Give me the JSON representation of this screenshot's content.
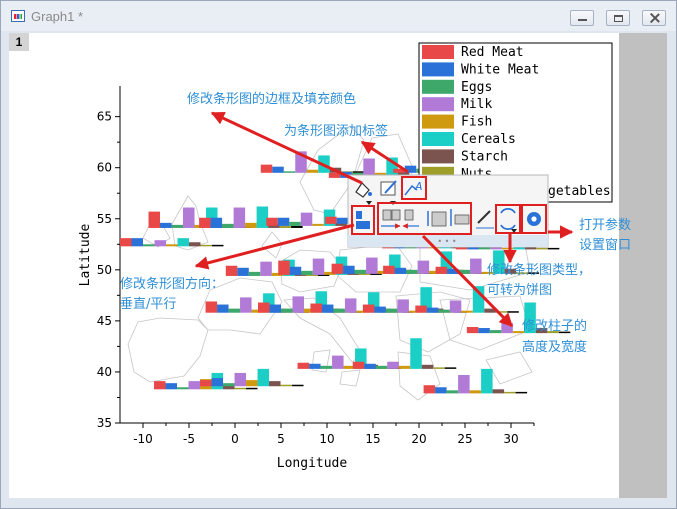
{
  "window": {
    "title": "Graph1 *",
    "layer_label": "1"
  },
  "colors": {
    "series": [
      "#e94848",
      "#2a72d8",
      "#3ea86a",
      "#b07ad6",
      "#d09a10",
      "#1ccfc6",
      "#7b5450",
      "#9e9e2a"
    ],
    "annotation": "#2f8fd6",
    "highlight": "#e02020"
  },
  "chart_data": {
    "type": "bar",
    "xlabel": "Longitude",
    "ylabel": "Latitude",
    "xlim": [
      -12.5,
      32.5
    ],
    "ylim": [
      35,
      68
    ],
    "xticks": [
      -10,
      -5,
      0,
      5,
      10,
      15,
      20,
      25,
      30
    ],
    "yticks": [
      35,
      40,
      45,
      50,
      55,
      60,
      65
    ],
    "legend": {
      "placement": "top-right",
      "entries": [
        "Red Meat",
        "White Meat",
        "Eggs",
        "Milk",
        "Fish",
        "Cereals",
        "Starch",
        "Nuts",
        "Fr&Veg"
      ],
      "visible_labels": [
        "Red Meat",
        "White Meat",
        "Eggs",
        "Milk",
        "Fish",
        "Cereals",
        "Starch",
        "Nuts",
        "getables"
      ]
    },
    "groups": [
      {
        "lon": -12.5,
        "lat": 52.3,
        "values": [
          0.8,
          0.8,
          0.2,
          0.6,
          0.2,
          0.8,
          0.4,
          0.1,
          0.1
        ]
      },
      {
        "lon": -9.4,
        "lat": 54.1,
        "values": [
          1.6,
          0.5,
          0.3,
          2.0,
          0.3,
          2.0,
          0.3,
          0.1,
          0.1
        ]
      },
      {
        "lon": -3.9,
        "lat": 54.1,
        "values": [
          1.0,
          1.0,
          0.4,
          2.0,
          0.5,
          2.1,
          0.4,
          0.2,
          0.2
        ]
      },
      {
        "lon": 2.8,
        "lat": 59.5,
        "values": [
          0.8,
          0.6,
          0.1,
          2.1,
          0.3,
          1.7,
          0.5,
          0.1,
          0.1
        ]
      },
      {
        "lon": 10.2,
        "lat": 59.0,
        "values": [
          0.5,
          0.6,
          0.5,
          1.9,
          0.5,
          2.0,
          0.6,
          0.1,
          0.1
        ]
      },
      {
        "lon": 17.2,
        "lat": 59.5,
        "values": [
          0.4,
          0.7,
          0.4,
          2.1,
          0.4,
          1.7,
          0.5,
          0.2,
          0.2
        ]
      },
      {
        "lon": 3.4,
        "lat": 54.3,
        "values": [
          0.8,
          0.8,
          0.4,
          1.3,
          0.2,
          1.6,
          0.3,
          0.1,
          0.1
        ]
      },
      {
        "lon": 9.8,
        "lat": 54.5,
        "values": [
          0.7,
          0.6,
          0.4,
          2.0,
          0.2,
          2.2,
          0.4,
          0.1,
          0.1
        ]
      },
      {
        "lon": 16.0,
        "lat": 52.1,
        "values": [
          0.7,
          0.6,
          0.4,
          1.9,
          0.2,
          1.8,
          0.5,
          0.1,
          0.1
        ]
      },
      {
        "lon": 24.0,
        "lat": 52.0,
        "values": [
          0.5,
          0.5,
          0.4,
          1.7,
          0.1,
          1.6,
          0.6,
          0.1,
          0.1
        ]
      },
      {
        "lon": -1.0,
        "lat": 49.4,
        "values": [
          1.0,
          0.8,
          0.4,
          1.4,
          0.3,
          1.6,
          0.4,
          0.1,
          0.1
        ]
      },
      {
        "lon": 4.7,
        "lat": 49.5,
        "values": [
          1.4,
          0.8,
          0.4,
          1.6,
          0.3,
          1.8,
          0.4,
          0.1,
          0.1
        ]
      },
      {
        "lon": 10.5,
        "lat": 49.6,
        "values": [
          1.0,
          0.8,
          0.4,
          1.6,
          0.3,
          1.9,
          0.4,
          0.1,
          0.1
        ]
      },
      {
        "lon": 16.1,
        "lat": 49.6,
        "values": [
          0.8,
          0.6,
          0.4,
          1.3,
          0.3,
          2.2,
          0.4,
          0.1,
          0.1
        ]
      },
      {
        "lon": 21.8,
        "lat": 49.6,
        "values": [
          0.7,
          0.5,
          0.4,
          1.5,
          0.2,
          2.3,
          0.5,
          0.1,
          0.1
        ]
      },
      {
        "lon": -3.2,
        "lat": 45.8,
        "values": [
          1.1,
          0.8,
          0.4,
          1.5,
          0.3,
          1.9,
          0.4,
          0.1,
          0.1
        ]
      },
      {
        "lon": 2.5,
        "lat": 45.8,
        "values": [
          1.0,
          0.8,
          0.4,
          1.6,
          0.4,
          2.1,
          0.4,
          0.1,
          0.1
        ]
      },
      {
        "lon": 8.2,
        "lat": 45.8,
        "values": [
          0.9,
          0.8,
          0.4,
          1.4,
          0.2,
          2.0,
          0.4,
          0.1,
          0.1
        ]
      },
      {
        "lon": 13.9,
        "lat": 45.8,
        "values": [
          0.8,
          0.6,
          0.4,
          1.3,
          0.2,
          2.5,
          0.4,
          0.1,
          0.1
        ]
      },
      {
        "lon": 19.6,
        "lat": 45.8,
        "values": [
          0.7,
          0.5,
          0.3,
          1.2,
          0.2,
          2.6,
          0.4,
          0.1,
          0.1
        ]
      },
      {
        "lon": 25.2,
        "lat": 43.8,
        "values": [
          0.6,
          0.5,
          0.3,
          1.0,
          0.2,
          3.0,
          0.5,
          0.2,
          0.1
        ]
      },
      {
        "lon": -8.8,
        "lat": 38.3,
        "values": [
          0.8,
          0.6,
          0.2,
          0.8,
          1.0,
          1.6,
          0.4,
          0.1,
          0.1
        ]
      },
      {
        "lon": -3.8,
        "lat": 38.6,
        "values": [
          0.6,
          0.8,
          0.3,
          1.3,
          0.6,
          1.7,
          0.5,
          0.1,
          0.1
        ]
      },
      {
        "lon": 6.8,
        "lat": 40.3,
        "values": [
          0.6,
          0.5,
          0.3,
          1.3,
          0.3,
          2.0,
          0.4,
          0.1,
          0.1
        ]
      },
      {
        "lon": 12.8,
        "lat": 40.3,
        "values": [
          0.7,
          0.5,
          0.3,
          0.7,
          0.3,
          3.0,
          0.4,
          0.1,
          0.1
        ]
      },
      {
        "lon": 20.5,
        "lat": 37.9,
        "values": [
          0.8,
          0.6,
          0.3,
          1.8,
          0.3,
          2.4,
          0.4,
          0.1,
          0.1
        ]
      }
    ]
  },
  "minitoolbar": {
    "buttons": [
      "fill-border-color",
      "edit-border",
      "add-labels",
      "bar-direction",
      "gap-decrease",
      "gap-increase",
      "height-increase",
      "height-decrease",
      "width-increase",
      "change-plot-type",
      "open-settings"
    ],
    "more_dots": "• • •"
  },
  "annotations": {
    "edit_border_fill": "修改条形图的边框及填充颜色",
    "add_labels": "为条形图添加标签",
    "direction_line1": "修改条形图方向：",
    "direction_line2": "垂直/平行",
    "plot_type_line1": "修改条形图类型，",
    "plot_type_line2": "可转为饼图",
    "bar_size_line1": "修改柱子的",
    "bar_size_line2": "高度及宽度",
    "settings_line1": "打开参数",
    "settings_line2": "设置窗口"
  }
}
